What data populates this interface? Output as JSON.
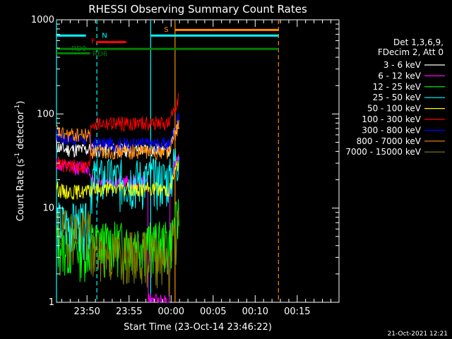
{
  "chart_data": {
    "type": "line",
    "title": "RHESSI Observing Summary Count Rates",
    "xlabel": "Start Time (23-Oct-14 23:46:22)",
    "ylabel": "Count Rate (s",
    "ylabel_sup1": "-1",
    "ylabel_mid": " detector",
    "ylabel_sup2": "-1",
    "ylabel_end": ")",
    "y_scale": "log",
    "ylim": [
      1,
      1000
    ],
    "xlim_minutes": [
      0,
      33.6
    ],
    "x_ticks": [
      {
        "label": "23:50",
        "m": 3.63
      },
      {
        "label": "23:55",
        "m": 8.63
      },
      {
        "label": "00:00",
        "m": 13.63
      },
      {
        "label": "00:05",
        "m": 18.63
      },
      {
        "label": "00:10",
        "m": 23.63
      },
      {
        "label": "00:15",
        "m": 28.63
      }
    ],
    "y_ticks": [
      {
        "label": "1",
        "v": 1
      },
      {
        "label": "10",
        "v": 10
      },
      {
        "label": "100",
        "v": 100
      },
      {
        "label": "1000",
        "v": 1000
      }
    ],
    "legend": {
      "header1": "Det 1,3,6,9,",
      "header2": "FDecim 2, Att 0",
      "position": "right"
    },
    "series": [
      {
        "name": "3 - 6 keV",
        "color": "#ffffff",
        "pre": 42,
        "post": 42,
        "seed": 11
      },
      {
        "name": "6 - 12 keV",
        "color": "#ff00ff",
        "pre": 27,
        "post": 19,
        "seed": 12
      },
      {
        "name": "12 - 25 keV",
        "color": "#00ff00",
        "pre": 4,
        "post": 4.5,
        "seed": 13
      },
      {
        "name": "25 - 50 keV",
        "color": "#00ffff",
        "pre": 7,
        "post": 21,
        "seed": 14
      },
      {
        "name": "50 - 100 keV",
        "color": "#ffff00",
        "pre": 15,
        "post": 16,
        "seed": 15
      },
      {
        "name": "100 - 300 keV",
        "color": "#ff0000",
        "pre": 28,
        "post": 80,
        "seed": 16
      },
      {
        "name": "300 - 800 keV",
        "color": "#0000ff",
        "pre": 55,
        "post": 48,
        "seed": 17
      },
      {
        "name": "800 - 7000 keV",
        "color": "#ff8c00",
        "pre": 60,
        "post": 40,
        "seed": 18
      },
      {
        "name": "7000 - 15000 keV",
        "color": "#808000",
        "pre": 6,
        "post": 3.5,
        "seed": 19
      }
    ],
    "flag_labels": {
      "n": "N",
      "f": "F",
      "s": "S",
      "rd0": "RD0",
      "rd6": "RD6"
    },
    "flag_bars": [
      {
        "label": "N",
        "color": "#00ffff",
        "y": 680,
        "from": 0,
        "to": 3.5
      },
      {
        "label": "N",
        "color": "#00ffff",
        "y": 680,
        "from": 11.2,
        "to": 26.4
      },
      {
        "label": "F",
        "color": "#ff0000",
        "y": 580,
        "from": 4.7,
        "to": 8.3
      },
      {
        "label": "S",
        "color": "#ff8c00",
        "y": 780,
        "from": 14.1,
        "to": 26.4
      },
      {
        "label": "RD0",
        "color": "#008000",
        "y": 490,
        "from": 0,
        "to": 26.4
      },
      {
        "label": "RD6",
        "color": "#008000",
        "y": 440,
        "from": 0,
        "to": 4.0
      }
    ],
    "markers": [
      {
        "m": 0.0,
        "color": "#00ffff",
        "dash": false
      },
      {
        "m": 4.8,
        "color": "#00ffff",
        "dash": true
      },
      {
        "m": 11.2,
        "color": "#00ffff",
        "dash": false
      },
      {
        "m": 14.1,
        "color": "#ff8c00",
        "dash": false
      },
      {
        "m": 26.4,
        "color": "#ff8c00",
        "dash": true
      }
    ],
    "grid": false
  },
  "footer_date": "21-Oct-2021 12:21"
}
